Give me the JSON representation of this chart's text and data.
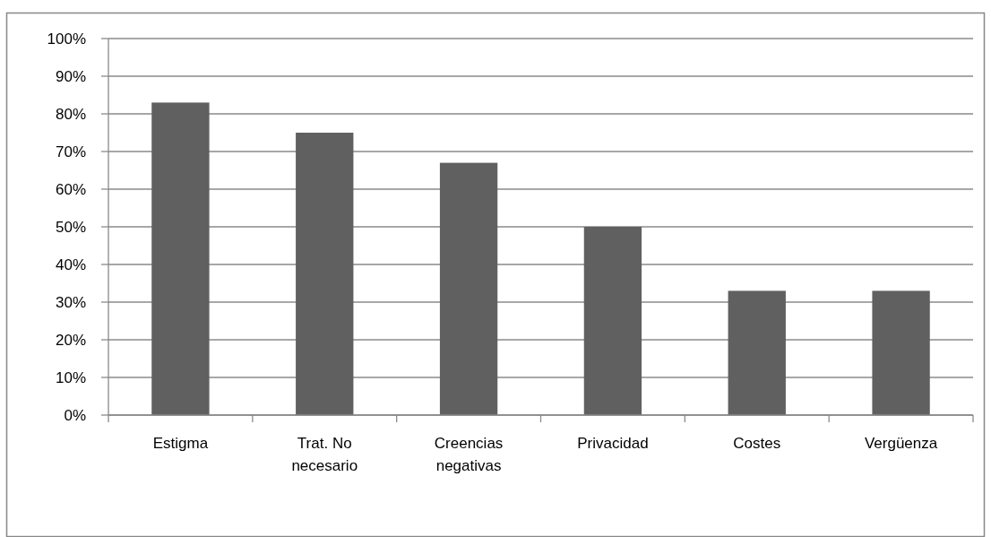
{
  "chart_data": {
    "type": "bar",
    "categories": [
      "Estigma",
      "Trat. No necesario",
      "Creencias negativas",
      "Privacidad",
      "Costes",
      "Vergüenza"
    ],
    "values": [
      83,
      75,
      67,
      50,
      33,
      33
    ],
    "color": "#606060",
    "ylim": [
      0,
      100
    ],
    "yticks": [
      {
        "value": 0,
        "label": "0%"
      },
      {
        "value": 10,
        "label": "10%"
      },
      {
        "value": 20,
        "label": "20%"
      },
      {
        "value": 30,
        "label": "30%"
      },
      {
        "value": 40,
        "label": "40%"
      },
      {
        "value": 50,
        "label": "50%"
      },
      {
        "value": 60,
        "label": "60%"
      },
      {
        "value": 70,
        "label": "70%"
      },
      {
        "value": 80,
        "label": "80%"
      },
      {
        "value": 90,
        "label": "90%"
      },
      {
        "value": 100,
        "label": "100%"
      }
    ],
    "grid": "y"
  }
}
